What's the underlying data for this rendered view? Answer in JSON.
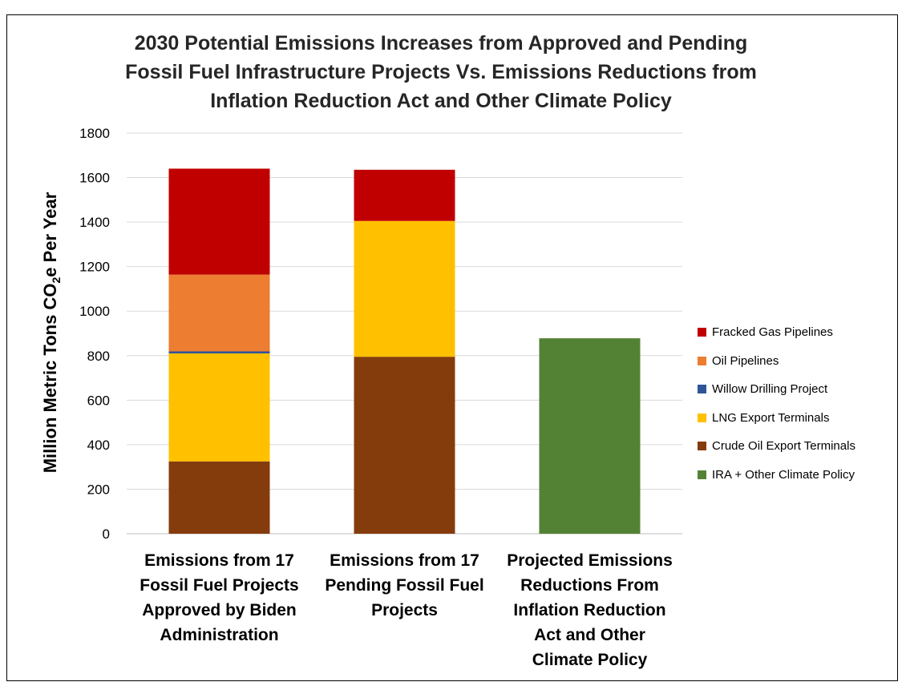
{
  "chart_data": {
    "type": "bar",
    "stacked": true,
    "title_lines": [
      "2030 Potential Emissions Increases from Approved and Pending",
      "Fossil Fuel Infrastructure Projects Vs. Emissions Reductions from",
      "Inflation Reduction Act and Other Climate Policy"
    ],
    "ylabel_main": "Million Metric Tons CO",
    "ylabel_sub": "2",
    "ylabel_tail": "e Per Year",
    "ylim": [
      0,
      1800
    ],
    "yticks": [
      "0",
      "200",
      "400",
      "600",
      "800",
      "1000",
      "1200",
      "1400",
      "1600",
      "1800"
    ],
    "grid": true,
    "legend_position": "right",
    "categories": [
      [
        "Emissions from 17",
        "Fossil Fuel Projects",
        "Approved by Biden",
        "Administration"
      ],
      [
        "Emissions from 17",
        "Pending Fossil Fuel",
        "Projects"
      ],
      [
        "Projected Emissions",
        "Reductions From",
        "Inflation Reduction",
        "Act and Other",
        "Climate Policy"
      ]
    ],
    "series": [
      {
        "name": "Crude Oil Export Terminals",
        "color": "#843C0C",
        "values": [
          325,
          795,
          0
        ]
      },
      {
        "name": "LNG Export Terminals",
        "color": "#FFC000",
        "values": [
          485,
          610,
          0
        ]
      },
      {
        "name": "Willow Drilling Project",
        "color": "#2F5597",
        "values": [
          9,
          0,
          0
        ]
      },
      {
        "name": "Oil Pipelines",
        "color": "#ED7D31",
        "values": [
          345,
          0,
          0
        ]
      },
      {
        "name": "Fracked Gas Pipelines",
        "color": "#C00000",
        "values": [
          476,
          230,
          0
        ]
      },
      {
        "name": "IRA + Other Climate Policy",
        "color": "#548235",
        "values": [
          0,
          0,
          878
        ]
      }
    ],
    "legend_order": [
      "Fracked Gas Pipelines",
      "Oil Pipelines",
      "Willow Drilling Project",
      "LNG Export Terminals",
      "Crude Oil Export Terminals",
      "IRA + Other Climate Policy"
    ]
  }
}
